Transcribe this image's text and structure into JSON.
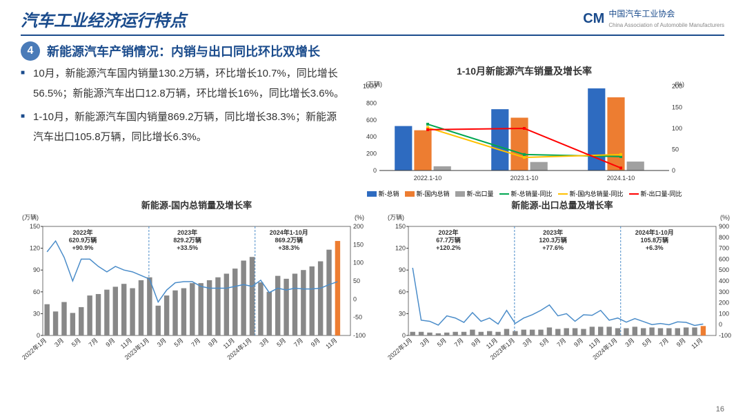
{
  "header": {
    "title": "汽车工业经济运行特点",
    "logo_text": "中国汽车工业协会",
    "logo_sub": "China Association of Automobile Manufacturers"
  },
  "section": {
    "num": "4",
    "title": "新能源汽车产销情况：内销与出口同比环比双增长"
  },
  "bullets": [
    "10月，新能源汽车国内销量130.2万辆，环比增长10.7%，同比增长56.5%；新能源汽车出口12.8万辆，环比增长16%，同比增长3.6%。",
    "1-10月，新能源汽车国内销量869.2万辆，同比增长38.3%；新能源汽车出口105.8万辆，同比增长6.3%。"
  ],
  "page": "16",
  "colors": {
    "blue": "#2e6bc0",
    "orange": "#ed7d31",
    "gray": "#a0a0a0",
    "green": "#00a651",
    "yellow": "#ffc000",
    "red": "#ff0000",
    "dark": "#333333",
    "lineblue": "#4a8cc9",
    "bargray": "#888888",
    "orangebar": "#ed7d31"
  },
  "top_chart": {
    "title": "1-10月新能源汽车销量及增长率",
    "y_left_label": "(万辆)",
    "y_right_label": "(%)",
    "categories": [
      "2022.1-10",
      "2023.1-10",
      "2024.1-10"
    ],
    "y_left_max": 1000,
    "y_left_step": 200,
    "y_right_max": 200,
    "y_right_step": 50,
    "bars": {
      "total": {
        "label": "新-总销",
        "color": "#2e6bc0",
        "vals": [
          528,
          728,
          975
        ]
      },
      "domestic": {
        "label": "新-国内总销",
        "color": "#ed7d31",
        "vals": [
          478,
          627,
          869
        ]
      },
      "export": {
        "label": "新-出口量",
        "color": "#a0a0a0",
        "vals": [
          50,
          101,
          106
        ]
      }
    },
    "lines": {
      "total_yoy": {
        "label": "新-总销量-同比",
        "color": "#00a651",
        "vals": [
          110,
          38,
          33
        ]
      },
      "dom_yoy": {
        "label": "新-国内总销量-同比",
        "color": "#ffc000",
        "vals": [
          102,
          31,
          38
        ]
      },
      "exp_yoy": {
        "label": "新-出口量-同比",
        "color": "#ff0000",
        "vals": [
          97,
          100,
          6
        ]
      }
    }
  },
  "bl_chart": {
    "title": "新能源-国内总销量及增长率",
    "y_left_label": "(万辆)",
    "y_left_max": 150,
    "y_left_step": 30,
    "y_right_label": "(%)",
    "y_right_min": -100,
    "y_right_max": 200,
    "y_right_step": 50,
    "x_labels": [
      "2022年1月",
      "3月",
      "5月",
      "7月",
      "9月",
      "11月",
      "2023年1月",
      "3月",
      "5月",
      "7月",
      "9月",
      "11月",
      "2024年1月",
      "3月",
      "5月",
      "7月",
      "9月",
      "11月"
    ],
    "annotations": [
      {
        "text": "2022年\n620.9万辆\n+90.9%",
        "x": 0.13
      },
      {
        "text": "2023年\n829.2万辆\n+33.5%",
        "x": 0.47
      },
      {
        "text": "2024年1-10月\n869.2万辆\n+38.3%",
        "x": 0.8
      }
    ],
    "bars": [
      43,
      33,
      46,
      31,
      39,
      55,
      57,
      63,
      67,
      71,
      65,
      76,
      80,
      41,
      55,
      62,
      65,
      72,
      72,
      76,
      80,
      85,
      92,
      103,
      108,
      73,
      60,
      82,
      78,
      85,
      90,
      95,
      102,
      118,
      130,
      0
    ],
    "last_bar_color": "#ed7d31",
    "line": [
      130,
      160,
      115,
      50,
      110,
      110,
      90,
      75,
      90,
      80,
      75,
      65,
      55,
      -8,
      25,
      45,
      48,
      48,
      35,
      30,
      30,
      30,
      35,
      40,
      35,
      52,
      18,
      30,
      25,
      30,
      28,
      28,
      30,
      40,
      48,
      0
    ],
    "dividers": [
      0.345,
      0.69
    ]
  },
  "br_chart": {
    "title": "新能源-出口总量及增长率",
    "y_left_label": "(万辆)",
    "y_left_max": 150,
    "y_left_step": 30,
    "y_right_label": "(%)",
    "y_right_min": -100,
    "y_right_max": 900,
    "y_right_step": 100,
    "x_labels": [
      "2022年1月",
      "3月",
      "5月",
      "7月",
      "9月",
      "11月",
      "2023年1月",
      "3月",
      "5月",
      "7月",
      "9月",
      "11月",
      "2024年1月",
      "3月",
      "5月",
      "7月",
      "9月",
      "11月"
    ],
    "annotations": [
      {
        "text": "2022年\n67.7万辆\n+120.2%",
        "x": 0.13
      },
      {
        "text": "2023年\n120.3万辆\n+77.6%",
        "x": 0.47
      },
      {
        "text": "2024年1-10月\n105.8万辆\n+6.3%",
        "x": 0.8
      }
    ],
    "bars": [
      5,
      5,
      4,
      3,
      4,
      5,
      5,
      8,
      5,
      6,
      5,
      9,
      6,
      8,
      8,
      8,
      11,
      9,
      10,
      10,
      9,
      12,
      12,
      12,
      10,
      10,
      12,
      10,
      11,
      10,
      10,
      10,
      11,
      11,
      13,
      0
    ],
    "last_bar_color": "#ed7d31",
    "line": [
      520,
      40,
      30,
      -5,
      80,
      60,
      20,
      110,
      30,
      60,
      5,
      130,
      10,
      60,
      90,
      130,
      180,
      80,
      100,
      30,
      90,
      85,
      130,
      40,
      60,
      22,
      55,
      28,
      0,
      10,
      -2,
      25,
      20,
      -8,
      5,
      0
    ],
    "dividers": [
      0.345,
      0.69
    ]
  }
}
